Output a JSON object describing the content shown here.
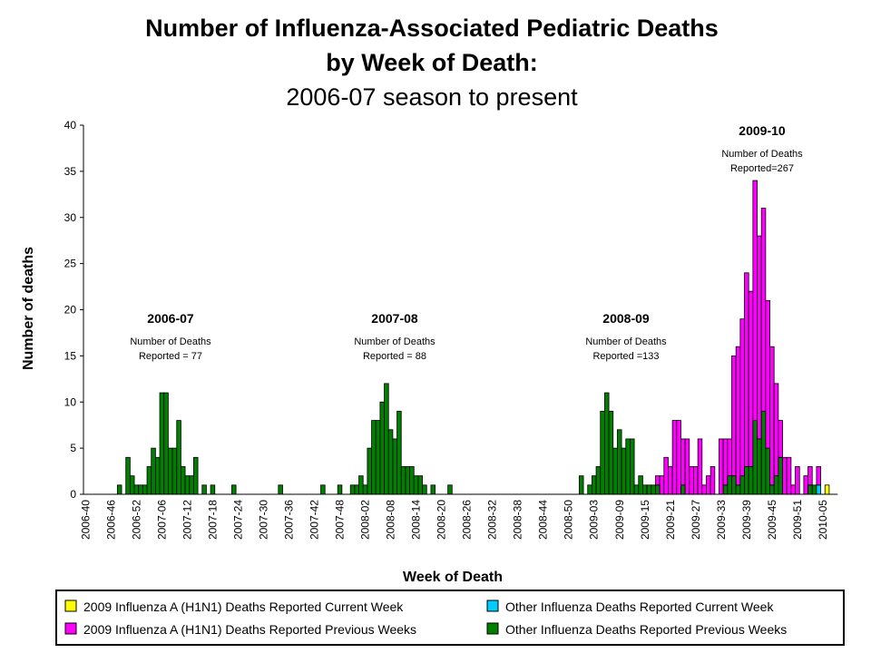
{
  "chart_data": {
    "type": "stacked_bar",
    "title": [
      "Number of Influenza-Associated Pediatric Deaths",
      "by Week of Death:",
      "2006-07 season to present"
    ],
    "x_label": "Week of Death",
    "y_label": "Number of deaths",
    "ylim": [
      0,
      40
    ],
    "yticks": [
      0,
      5,
      10,
      15,
      20,
      25,
      30,
      35,
      40
    ],
    "categories": [
      "2006-40",
      null,
      null,
      null,
      null,
      null,
      "2006-46",
      null,
      null,
      null,
      null,
      null,
      "2006-52",
      null,
      null,
      null,
      null,
      null,
      "2007-06",
      null,
      null,
      null,
      null,
      null,
      "2007-12",
      null,
      null,
      null,
      null,
      null,
      "2007-18",
      null,
      null,
      null,
      null,
      null,
      "2007-24",
      null,
      null,
      null,
      null,
      null,
      "2007-30",
      null,
      null,
      null,
      null,
      null,
      "2007-36",
      null,
      null,
      null,
      null,
      null,
      "2007-42",
      null,
      null,
      null,
      null,
      null,
      "2007-48",
      null,
      null,
      null,
      null,
      null,
      "2008-02",
      null,
      null,
      null,
      null,
      null,
      "2008-08",
      null,
      null,
      null,
      null,
      null,
      "2008-14",
      null,
      null,
      null,
      null,
      null,
      "2008-20",
      null,
      null,
      null,
      null,
      null,
      "2008-26",
      null,
      null,
      null,
      null,
      null,
      "2008-32",
      null,
      null,
      null,
      null,
      null,
      "2008-38",
      null,
      null,
      null,
      null,
      null,
      "2008-44",
      null,
      null,
      null,
      null,
      null,
      "2008-50",
      null,
      null,
      null,
      null,
      null,
      "2009-03",
      null,
      null,
      null,
      null,
      null,
      "2009-09",
      null,
      null,
      null,
      null,
      null,
      "2009-15",
      null,
      null,
      null,
      null,
      null,
      "2009-21",
      null,
      null,
      null,
      null,
      null,
      "2009-27",
      null,
      null,
      null,
      null,
      null,
      "2009-33",
      null,
      null,
      null,
      null,
      null,
      "2009-39",
      null,
      null,
      null,
      null,
      null,
      "2009-45",
      null,
      null,
      null,
      null,
      null,
      "2009-51",
      null,
      null,
      null,
      null,
      null,
      "2010-05",
      null,
      null,
      null
    ],
    "series": [
      {
        "name": "2009 Influenza  A (H1N1) Deaths Reported Current Week",
        "color": "#ffff00",
        "values": [
          0,
          0,
          0,
          0,
          0,
          0,
          0,
          0,
          0,
          0,
          0,
          0,
          0,
          0,
          0,
          0,
          0,
          0,
          0,
          0,
          0,
          0,
          0,
          0,
          0,
          0,
          0,
          0,
          0,
          0,
          0,
          0,
          0,
          0,
          0,
          0,
          0,
          0,
          0,
          0,
          0,
          0,
          0,
          0,
          0,
          0,
          0,
          0,
          0,
          0,
          0,
          0,
          0,
          0,
          0,
          0,
          0,
          0,
          0,
          0,
          0,
          0,
          0,
          0,
          0,
          0,
          0,
          0,
          0,
          0,
          0,
          0,
          0,
          0,
          0,
          0,
          0,
          0,
          0,
          0,
          0,
          0,
          0,
          0,
          0,
          0,
          0,
          0,
          0,
          0,
          0,
          0,
          0,
          0,
          0,
          0,
          0,
          0,
          0,
          0,
          0,
          0,
          0,
          0,
          0,
          0,
          0,
          0,
          0,
          0,
          0,
          0,
          0,
          0,
          0,
          0,
          0,
          0,
          0,
          0,
          0,
          0,
          0,
          0,
          0,
          0,
          0,
          0,
          0,
          0,
          0,
          0,
          0,
          0,
          0,
          0,
          0,
          0,
          0,
          0,
          0,
          0,
          0,
          0,
          0,
          0,
          0,
          0,
          0,
          0,
          0,
          0,
          0,
          0,
          0,
          0,
          0,
          0,
          0,
          0,
          0,
          0,
          0,
          0,
          0,
          0,
          0,
          0,
          0,
          0,
          0,
          0,
          0,
          0,
          0,
          1,
          0,
          0
        ]
      },
      {
        "name": "2009 Influenza  A (H1N1) Deaths Reported Previous Weeks",
        "color": "#ff00ff",
        "values": [
          0,
          0,
          0,
          0,
          0,
          0,
          0,
          0,
          0,
          0,
          0,
          0,
          0,
          0,
          0,
          0,
          0,
          0,
          0,
          0,
          0,
          0,
          0,
          0,
          0,
          0,
          0,
          0,
          0,
          0,
          0,
          0,
          0,
          0,
          0,
          0,
          0,
          0,
          0,
          0,
          0,
          0,
          0,
          0,
          0,
          0,
          0,
          0,
          0,
          0,
          0,
          0,
          0,
          0,
          0,
          0,
          0,
          0,
          0,
          0,
          0,
          0,
          0,
          0,
          0,
          0,
          0,
          0,
          0,
          0,
          0,
          0,
          0,
          0,
          0,
          0,
          0,
          0,
          0,
          0,
          0,
          0,
          0,
          0,
          0,
          0,
          0,
          0,
          0,
          0,
          0,
          0,
          0,
          0,
          0,
          0,
          0,
          0,
          0,
          0,
          0,
          0,
          0,
          0,
          0,
          0,
          0,
          0,
          0,
          0,
          0,
          0,
          0,
          0,
          0,
          0,
          0,
          0,
          0,
          0,
          0,
          0,
          0,
          0,
          0,
          0,
          0,
          0,
          0,
          0,
          0,
          0,
          0,
          0,
          0,
          1,
          2,
          4,
          3,
          8,
          8,
          5,
          6,
          3,
          3,
          6,
          1,
          2,
          3,
          0,
          6,
          5,
          4,
          13,
          15,
          17,
          21,
          19,
          26,
          22,
          22,
          16,
          15,
          10,
          4,
          4,
          4,
          1,
          3,
          0,
          2,
          2,
          0,
          2,
          0,
          0,
          0,
          0
        ]
      },
      {
        "name": "Other Influenza  Deaths Reported Current Week",
        "color": "#00ccff",
        "values": [
          0,
          0,
          0,
          0,
          0,
          0,
          0,
          0,
          0,
          0,
          0,
          0,
          0,
          0,
          0,
          0,
          0,
          0,
          0,
          0,
          0,
          0,
          0,
          0,
          0,
          0,
          0,
          0,
          0,
          0,
          0,
          0,
          0,
          0,
          0,
          0,
          0,
          0,
          0,
          0,
          0,
          0,
          0,
          0,
          0,
          0,
          0,
          0,
          0,
          0,
          0,
          0,
          0,
          0,
          0,
          0,
          0,
          0,
          0,
          0,
          0,
          0,
          0,
          0,
          0,
          0,
          0,
          0,
          0,
          0,
          0,
          0,
          0,
          0,
          0,
          0,
          0,
          0,
          0,
          0,
          0,
          0,
          0,
          0,
          0,
          0,
          0,
          0,
          0,
          0,
          0,
          0,
          0,
          0,
          0,
          0,
          0,
          0,
          0,
          0,
          0,
          0,
          0,
          0,
          0,
          0,
          0,
          0,
          0,
          0,
          0,
          0,
          0,
          0,
          0,
          0,
          0,
          0,
          0,
          0,
          0,
          0,
          0,
          0,
          0,
          0,
          0,
          0,
          0,
          0,
          0,
          0,
          0,
          0,
          0,
          0,
          0,
          0,
          0,
          0,
          0,
          0,
          0,
          0,
          0,
          0,
          0,
          0,
          0,
          0,
          0,
          0,
          0,
          0,
          0,
          0,
          0,
          0,
          0,
          0,
          0,
          0,
          0,
          0,
          0,
          0,
          0,
          0,
          0,
          0,
          0,
          0,
          0,
          1,
          0,
          0,
          0,
          0
        ]
      },
      {
        "name": "Other Influenza  Deaths Reported Previous Weeks",
        "color": "#007f00",
        "values": [
          0,
          0,
          0,
          0,
          0,
          0,
          0,
          0,
          1,
          0,
          4,
          2,
          1,
          1,
          1,
          3,
          5,
          4,
          11,
          11,
          5,
          5,
          8,
          3,
          2,
          2,
          4,
          0,
          1,
          0,
          1,
          0,
          0,
          0,
          0,
          1,
          0,
          0,
          0,
          0,
          0,
          0,
          0,
          0,
          0,
          0,
          1,
          0,
          0,
          0,
          0,
          0,
          0,
          0,
          0,
          0,
          1,
          0,
          0,
          0,
          1,
          0,
          0,
          1,
          1,
          2,
          1,
          5,
          8,
          8,
          10,
          12,
          7,
          6,
          9,
          3,
          3,
          3,
          2,
          2,
          1,
          0,
          1,
          0,
          0,
          0,
          1,
          0,
          0,
          0,
          0,
          0,
          0,
          0,
          0,
          0,
          0,
          0,
          0,
          0,
          0,
          0,
          0,
          0,
          0,
          0,
          0,
          0,
          0,
          0,
          0,
          0,
          0,
          0,
          0,
          0,
          0,
          2,
          0,
          1,
          2,
          3,
          9,
          11,
          9,
          5,
          7,
          5,
          6,
          6,
          1,
          2,
          1,
          1,
          1,
          1,
          0,
          0,
          0,
          0,
          0,
          1,
          0,
          0,
          0,
          0,
          0,
          0,
          0,
          0,
          0,
          1,
          2,
          2,
          1,
          2,
          3,
          3,
          8,
          6,
          9,
          5,
          1,
          2,
          4,
          0,
          0,
          0,
          0,
          0,
          0,
          1,
          1,
          0,
          0,
          0,
          0,
          0
        ]
      }
    ],
    "annotations": [
      {
        "title": "2006-07",
        "lines": [
          "Number of Deaths",
          "Reported = 77"
        ]
      },
      {
        "title": "2007-08",
        "lines": [
          "Number of Deaths",
          "Reported = 88"
        ]
      },
      {
        "title": "2008-09",
        "lines": [
          "Number of Deaths",
          "Reported =133"
        ]
      },
      {
        "title": "2009-10",
        "lines": [
          "Number of Deaths",
          "Reported=267"
        ]
      }
    ]
  }
}
